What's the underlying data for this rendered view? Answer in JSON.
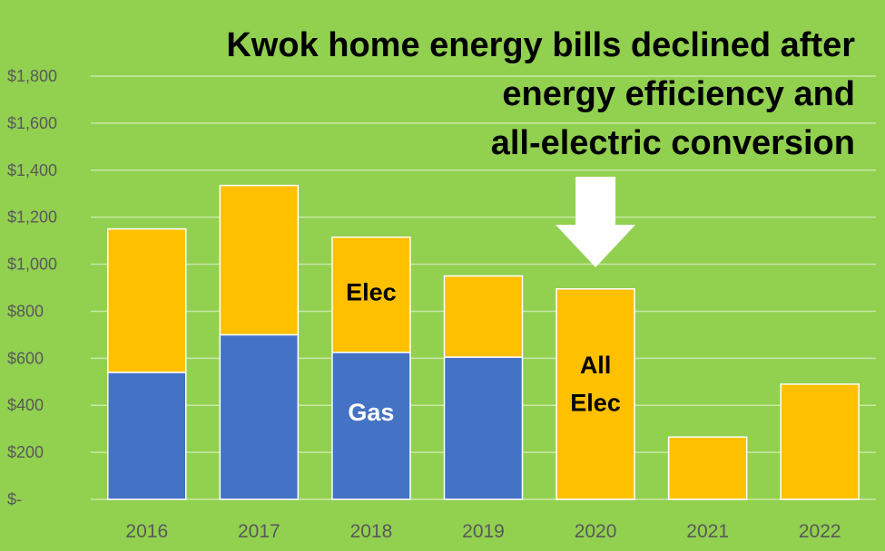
{
  "chart_data": {
    "type": "bar",
    "stacked": true,
    "title_lines": [
      "Kwok home energy bills declined after",
      "energy efficiency and",
      "all-electric conversion"
    ],
    "categories": [
      "2016",
      "2017",
      "2018",
      "2019",
      "2020",
      "2021",
      "2022"
    ],
    "series": [
      {
        "name": "Gas",
        "color": "#4472c4",
        "values": [
          540,
          700,
          625,
          605,
          0,
          0,
          0
        ]
      },
      {
        "name": "Elec",
        "color": "#ffc000",
        "values": [
          610,
          635,
          490,
          345,
          895,
          265,
          490
        ]
      }
    ],
    "ylim": [
      0,
      1800
    ],
    "yticks": [
      {
        "value": 0,
        "label": "$-"
      },
      {
        "value": 200,
        "label": "$200"
      },
      {
        "value": 400,
        "label": "$400"
      },
      {
        "value": 600,
        "label": "$600"
      },
      {
        "value": 800,
        "label": "$800"
      },
      {
        "value": 1000,
        "label": "$1,000"
      },
      {
        "value": 1200,
        "label": "$1,200"
      },
      {
        "value": 1400,
        "label": "$1,400"
      },
      {
        "value": 1600,
        "label": "$1,600"
      },
      {
        "value": 1800,
        "label": "$1,800"
      }
    ],
    "grid": true,
    "annotations": [
      {
        "text": "Elec",
        "category": "2018",
        "value": 880,
        "color": "#000000"
      },
      {
        "text": "Gas",
        "category": "2018",
        "value": 370,
        "color": "#ffffff"
      },
      {
        "text": "All",
        "category": "2020",
        "value": 570,
        "color": "#000000"
      },
      {
        "text": "Elec",
        "category": "2020",
        "value": 410,
        "color": "#000000"
      }
    ],
    "arrow": {
      "category": "2020",
      "color": "#ffffff"
    },
    "background": "#92d050"
  }
}
